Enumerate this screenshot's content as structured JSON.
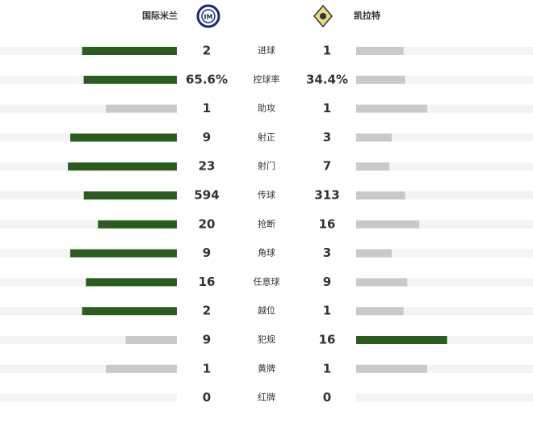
{
  "header": {
    "home_team": "国际米兰",
    "away_team": "凯拉特"
  },
  "colors": {
    "leader": "#2b5c1f",
    "other": "#c9c9c9",
    "track": "#f4f4f4"
  },
  "stats": [
    {
      "label": "进球",
      "home": 2,
      "away": 1
    },
    {
      "label": "控球率",
      "home": 65.6,
      "away": 34.4,
      "home_label": "65.6%",
      "away_label": "34.4%"
    },
    {
      "label": "助攻",
      "home": 1,
      "away": 1
    },
    {
      "label": "射正",
      "home": 9,
      "away": 3
    },
    {
      "label": "射门",
      "home": 23,
      "away": 7
    },
    {
      "label": "传球",
      "home": 594,
      "away": 313
    },
    {
      "label": "抢断",
      "home": 20,
      "away": 16
    },
    {
      "label": "角球",
      "home": 9,
      "away": 3
    },
    {
      "label": "任意球",
      "home": 16,
      "away": 9
    },
    {
      "label": "越位",
      "home": 2,
      "away": 1
    },
    {
      "label": "犯规",
      "home": 9,
      "away": 16
    },
    {
      "label": "黄牌",
      "home": 1,
      "away": 1
    },
    {
      "label": "红牌",
      "home": 0,
      "away": 0
    }
  ]
}
